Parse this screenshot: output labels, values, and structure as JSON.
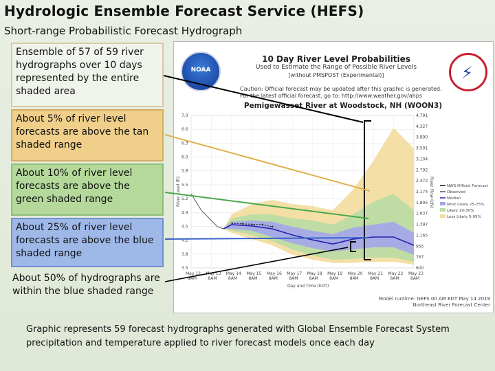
{
  "slide": {
    "title": "Hydrologic Ensemble Forecast Service (HEFS)",
    "subtitle": "Short-range Probabilistic Forecast Hydrograph",
    "callouts": [
      "Ensemble of  57 of 59 river hydrographs over 10 days represented by the entire shaded area",
      "About 5% of river level forecasts are above the tan shaded range",
      "About 10% of river level forecasts are above the green shaded range",
      "About 25% of river level forecasts are above the blue shaded range",
      "About 50% of hydrographs are within the  blue shaded range"
    ],
    "footer": "Graphic represents 59 forecast hydrographs generated with Global Ensemble Forecast System precipitation and temperature applied to river forecast models once each day"
  },
  "panel": {
    "noaa_label": "NOAA",
    "chart_title": "10 Day River Level Probabilities",
    "chart_subtitle": "Used to Estimate the Range of Possible River Levels",
    "chart_subtitle2": "[without PMSPOST (Experimental)]",
    "caution_lines": [
      "Caution: Official forecast may be updated after this graphic is generated.",
      "For the latest official forecast, go to: http://www.weather.gov/ahps"
    ],
    "location": "Pemigewasset River at Woodstock, NH (WOON3)",
    "runtime_lines": [
      "Model runtime: GEFS 00 AM EDT May 14 2019",
      "Northeast River Forecast Center"
    ]
  },
  "colors": {
    "tan": "#f3dc9c",
    "green": "#b8dca4",
    "blue": "#a3a6ea",
    "median": "#2a1fb0",
    "observed": "#555555",
    "official": "#111111",
    "arrow": "#000000"
  },
  "chart_data": {
    "type": "area",
    "ylabel": "River Level (ft)",
    "y2label": "River Flow (cfs)",
    "xlabel": "Day and Time (EDT)",
    "ylim": [
      3.3,
      7.0
    ],
    "yticks": [
      "7.0",
      "6.6",
      "6.3",
      "6.0",
      "5.8",
      "5.5",
      "5.2",
      "4.9",
      "4.5",
      "4.2",
      "3.8",
      "3.5"
    ],
    "y2ticks": [
      "4,791",
      "4,327",
      "3,890",
      "3,501",
      "3,104",
      "2,792",
      "2,472",
      "2,174",
      "1,895",
      "1,637",
      "1,397",
      "1,165",
      "955",
      "767",
      "600"
    ],
    "xticks": [
      "May 12 8AM",
      "May 13 8AM",
      "May 14 8AM",
      "May 15 8AM",
      "May 16 8AM",
      "May 17 8AM",
      "May 18 8AM",
      "May 19 8AM",
      "May 20 8AM",
      "May 21 8AM",
      "May 22 8AM",
      "May 23 8AM"
    ],
    "x": [
      0,
      1,
      2,
      3,
      4,
      5,
      6,
      7,
      8,
      9,
      10,
      11
    ],
    "series": [
      {
        "name": "Observed",
        "x": [
          0,
          0.5,
          1,
          1.3,
          1.6
        ],
        "values": [
          5.1,
          4.7,
          4.45,
          4.3,
          4.25
        ]
      },
      {
        "name": "Median",
        "x": [
          1.6,
          2,
          3,
          4,
          5,
          6,
          7,
          8,
          9,
          10,
          11
        ],
        "values": [
          4.25,
          4.35,
          4.32,
          4.25,
          4.1,
          3.98,
          3.88,
          4.0,
          4.05,
          4.05,
          3.85
        ]
      },
      {
        "name": "NWS Official Forecast",
        "x": [
          2,
          2.5,
          3,
          3.5,
          4
        ],
        "values": [
          4.38,
          4.37,
          4.36,
          4.35,
          4.3
        ]
      },
      {
        "name": "Most Likely 25-75%",
        "x": [
          1.6,
          2,
          3,
          4,
          5,
          6,
          7,
          8,
          9,
          10,
          11
        ],
        "low": [
          4.25,
          4.25,
          4.2,
          4.05,
          3.9,
          3.78,
          3.7,
          3.75,
          3.8,
          3.8,
          3.62
        ],
        "high": [
          4.25,
          4.42,
          4.45,
          4.42,
          4.3,
          4.2,
          4.12,
          4.28,
          4.35,
          4.42,
          4.15
        ]
      },
      {
        "name": "Likely 10-30%",
        "x": [
          1.6,
          2,
          3,
          4,
          5,
          6,
          7,
          8,
          9,
          10,
          11
        ],
        "low": [
          4.25,
          4.2,
          4.1,
          3.95,
          3.75,
          3.6,
          3.5,
          3.52,
          3.55,
          3.55,
          3.45
        ],
        "high": [
          4.25,
          4.5,
          4.6,
          4.6,
          4.5,
          4.45,
          4.35,
          4.6,
          4.9,
          5.1,
          4.7
        ]
      },
      {
        "name": "Less Likely 5-95%",
        "x": [
          1.6,
          2,
          3,
          4,
          5,
          6,
          7,
          8,
          9,
          10,
          11
        ],
        "low": [
          4.25,
          4.15,
          4.0,
          3.85,
          3.62,
          3.5,
          3.42,
          3.42,
          3.45,
          3.45,
          3.38
        ],
        "high": [
          4.25,
          4.6,
          4.85,
          4.95,
          4.85,
          4.8,
          4.7,
          5.2,
          5.9,
          6.7,
          6.2
        ]
      }
    ],
    "legend": [
      "NWS Official Forecast",
      "Observed",
      "Median",
      "Most Likely 25-75%",
      "Likely 10-30%",
      "Less Likely 5-95%"
    ],
    "legend_position": "right"
  }
}
